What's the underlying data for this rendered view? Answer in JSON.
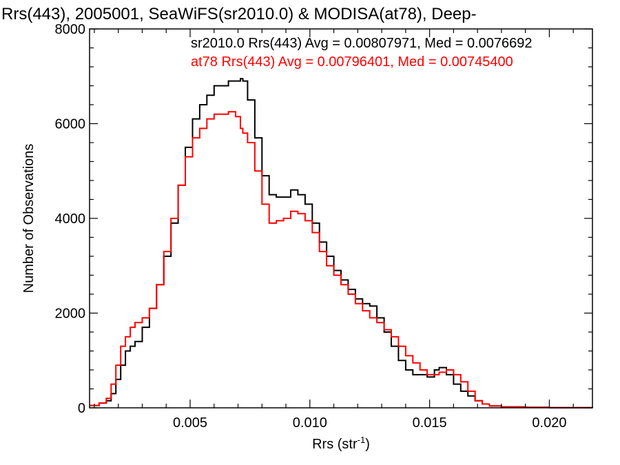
{
  "chart_data": {
    "type": "line",
    "title": "Rrs(443), 2005001, SeaWiFS(sr2010.0) & MODISA(at78), Deep-",
    "xlabel": "Rrs (str",
    "xlabel_sup": "-1",
    "xlabel_end": ")",
    "ylabel": "Number of Observations",
    "xlim": [
      0.0008,
      0.0218
    ],
    "ylim": [
      0,
      8000
    ],
    "xticks": [
      0.005,
      0.01,
      0.015,
      0.02
    ],
    "xtick_labels": [
      "0.005",
      "0.010",
      "0.015",
      "0.020"
    ],
    "yticks": [
      0,
      2000,
      4000,
      6000,
      8000
    ],
    "ytick_labels": [
      "0",
      "2000",
      "4000",
      "6000",
      "8000"
    ],
    "grid": false,
    "legend_position": "top-right",
    "series": [
      {
        "name": "sr2010.0 Rrs(443) Avg = 0.00807971, Med = 0.0076692",
        "color": "#000000",
        "x": [
          0.0008,
          0.0012,
          0.0015,
          0.0017,
          0.0019,
          0.0021,
          0.0023,
          0.0025,
          0.0027,
          0.003,
          0.0033,
          0.0036,
          0.0039,
          0.0042,
          0.0045,
          0.0048,
          0.0051,
          0.0054,
          0.0057,
          0.006,
          0.0063,
          0.0066,
          0.0069,
          0.0071,
          0.0072,
          0.0074,
          0.0077,
          0.008,
          0.0083,
          0.0086,
          0.0089,
          0.0092,
          0.0095,
          0.0098,
          0.0101,
          0.0104,
          0.0107,
          0.011,
          0.0113,
          0.0116,
          0.0119,
          0.0122,
          0.0125,
          0.0128,
          0.0131,
          0.0134,
          0.0137,
          0.014,
          0.0143,
          0.0146,
          0.0149,
          0.0152,
          0.0154,
          0.0157,
          0.016,
          0.0163,
          0.0166,
          0.0169,
          0.0172,
          0.0175,
          0.018,
          0.019,
          0.02,
          0.0218
        ],
        "y": [
          50,
          100,
          150,
          300,
          600,
          900,
          1200,
          1300,
          1400,
          1700,
          2100,
          2600,
          3200,
          3900,
          4700,
          5500,
          6100,
          6400,
          6600,
          6800,
          6800,
          6900,
          6900,
          6950,
          6900,
          6500,
          5700,
          4900,
          4500,
          4450,
          4450,
          4600,
          4500,
          4300,
          3900,
          3500,
          3200,
          2900,
          2700,
          2500,
          2300,
          2200,
          2150,
          1900,
          1600,
          1300,
          1000,
          800,
          700,
          700,
          650,
          800,
          850,
          700,
          500,
          350,
          250,
          150,
          80,
          40,
          20,
          10,
          5,
          0
        ]
      },
      {
        "name": "at78 Rrs(443) Avg = 0.00796401, Med = 0.00745400",
        "color": "#ff0000",
        "x": [
          0.0008,
          0.0012,
          0.0015,
          0.0017,
          0.0019,
          0.0021,
          0.0023,
          0.0025,
          0.0027,
          0.003,
          0.0033,
          0.0036,
          0.0039,
          0.0042,
          0.0045,
          0.0048,
          0.0051,
          0.0054,
          0.0057,
          0.006,
          0.0063,
          0.0066,
          0.0069,
          0.0071,
          0.0072,
          0.0074,
          0.0077,
          0.008,
          0.0083,
          0.0086,
          0.0089,
          0.0092,
          0.0095,
          0.0098,
          0.0101,
          0.0104,
          0.0107,
          0.011,
          0.0113,
          0.0116,
          0.0119,
          0.0122,
          0.0125,
          0.0128,
          0.0131,
          0.0134,
          0.0137,
          0.014,
          0.0143,
          0.0146,
          0.0149,
          0.0152,
          0.0154,
          0.0157,
          0.016,
          0.0163,
          0.0166,
          0.0169,
          0.0172,
          0.0175,
          0.018,
          0.019,
          0.02,
          0.0218
        ],
        "y": [
          50,
          100,
          200,
          500,
          900,
          1300,
          1500,
          1700,
          1800,
          1900,
          2100,
          2600,
          3300,
          4000,
          4700,
          5300,
          5700,
          5900,
          6100,
          6200,
          6200,
          6250,
          6150,
          5900,
          5800,
          5600,
          5000,
          4300,
          3900,
          3950,
          4000,
          4150,
          4100,
          3950,
          3700,
          3300,
          3000,
          2800,
          2600,
          2400,
          2200,
          2050,
          1900,
          1800,
          1650,
          1500,
          1300,
          1100,
          950,
          800,
          700,
          700,
          750,
          800,
          700,
          550,
          350,
          150,
          80,
          40,
          20,
          10,
          5,
          0
        ]
      }
    ]
  }
}
